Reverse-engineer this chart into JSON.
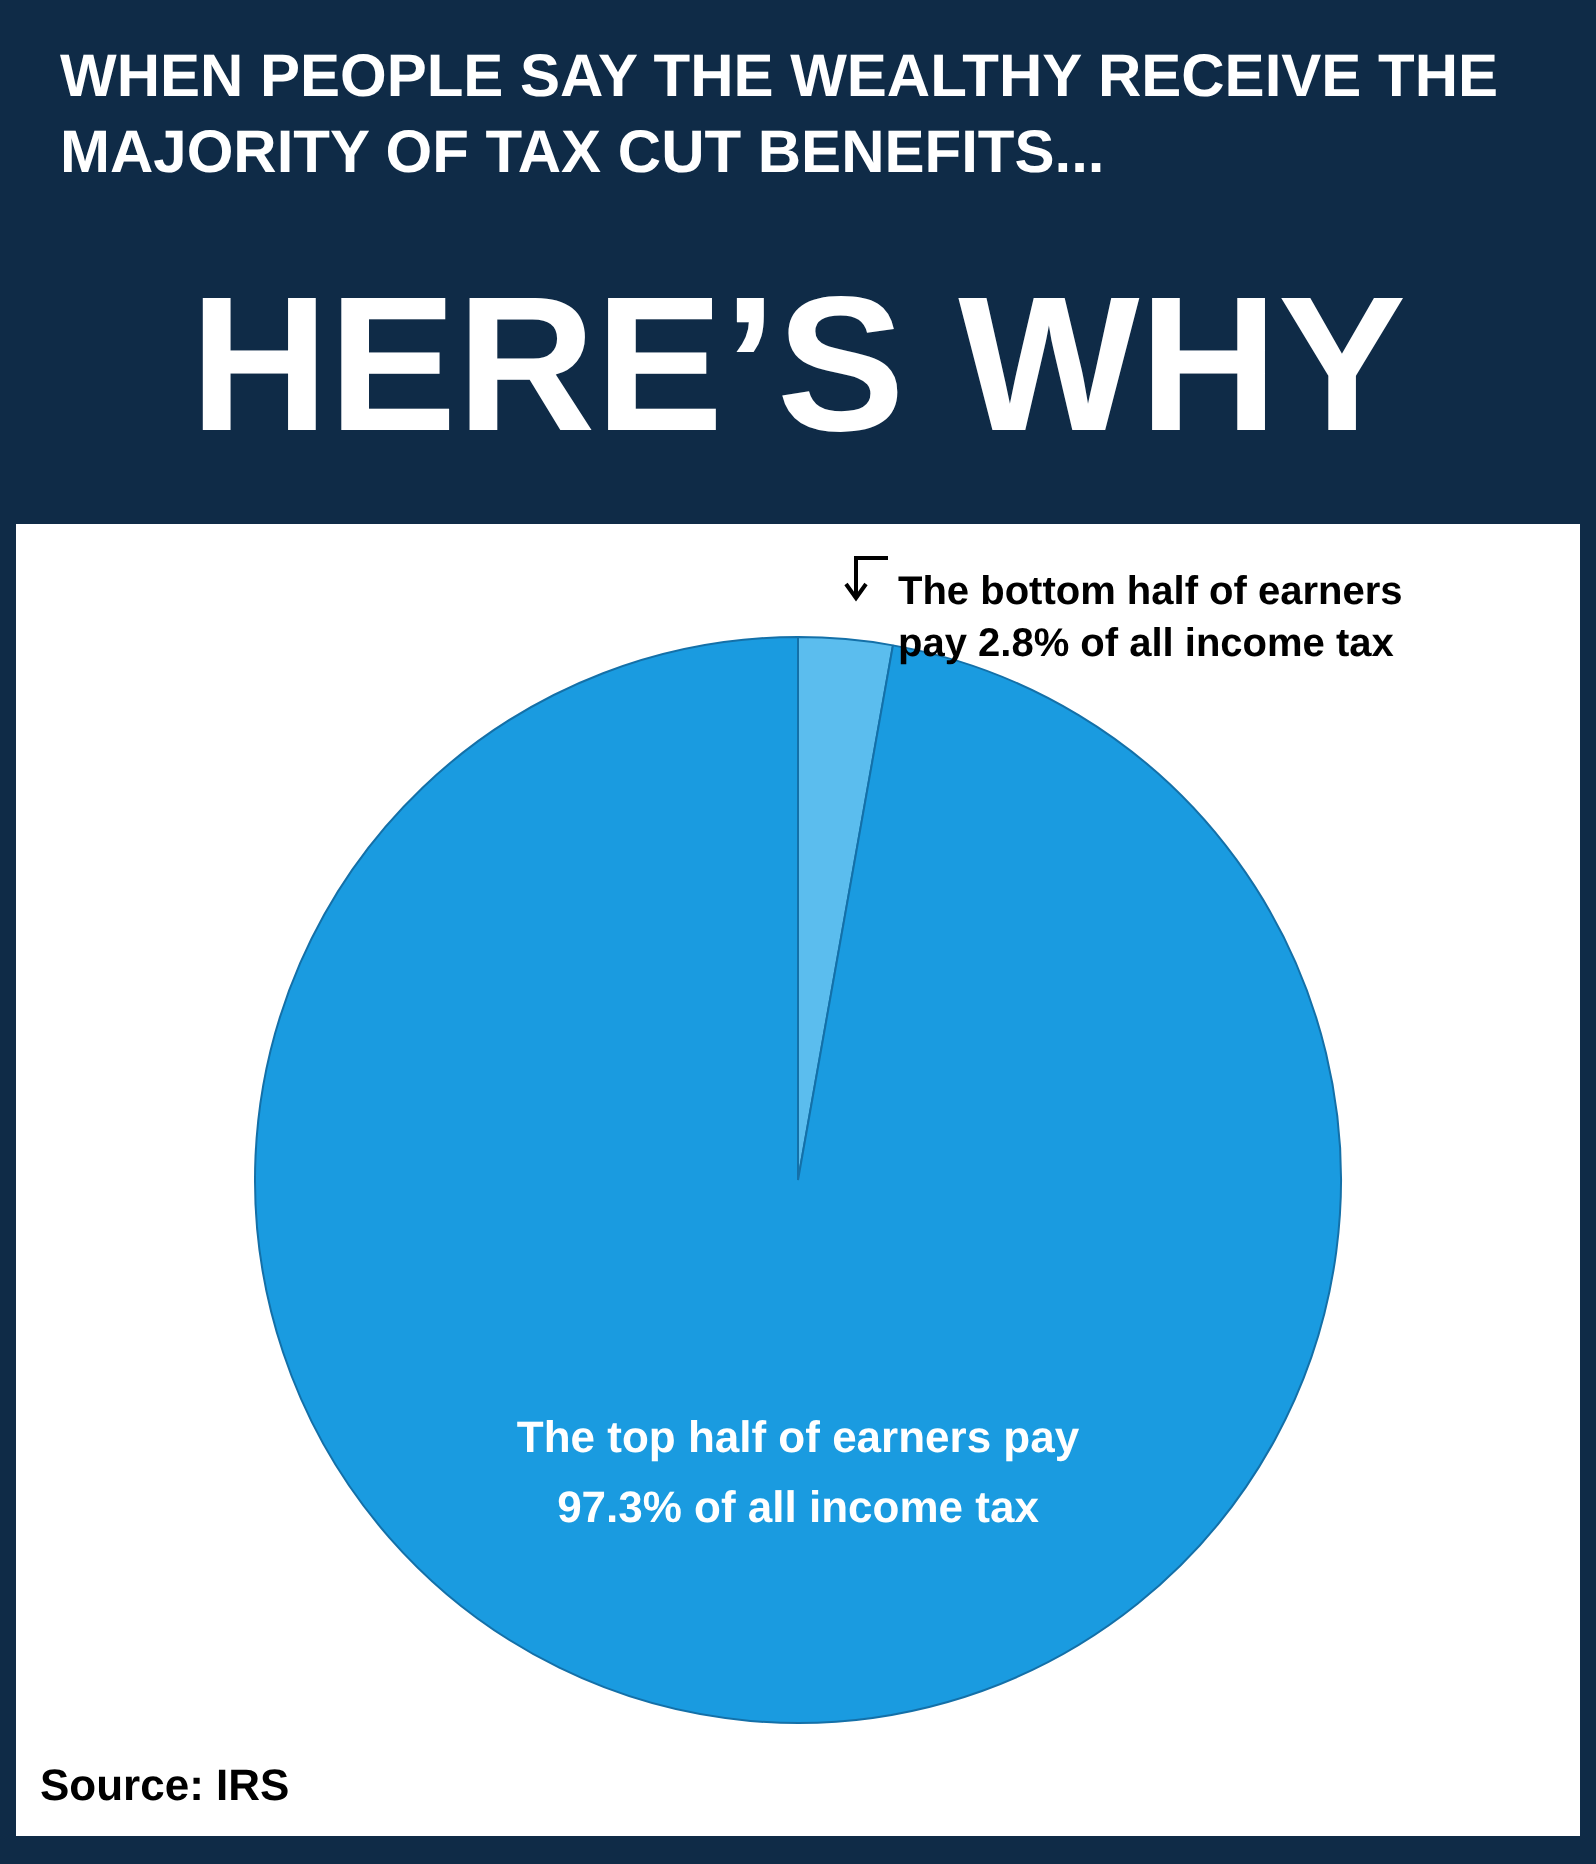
{
  "chart_data": {
    "type": "pie",
    "title": "WHEN PEOPLE SAY THE WEALTHY RECEIVE THE MAJORITY OF TAX CUT BENEFITS...",
    "subtitle": "HERE’S WHY",
    "categories": [
      "The bottom half of earners pay 2.8% of all income tax",
      "The top half of earners pay 97.3% of all income tax"
    ],
    "values": [
      2.8,
      97.3
    ],
    "colors": [
      "#5bbdee",
      "#1a9be0"
    ],
    "annotations": [
      "Source: IRS"
    ],
    "legend": false
  }
}
